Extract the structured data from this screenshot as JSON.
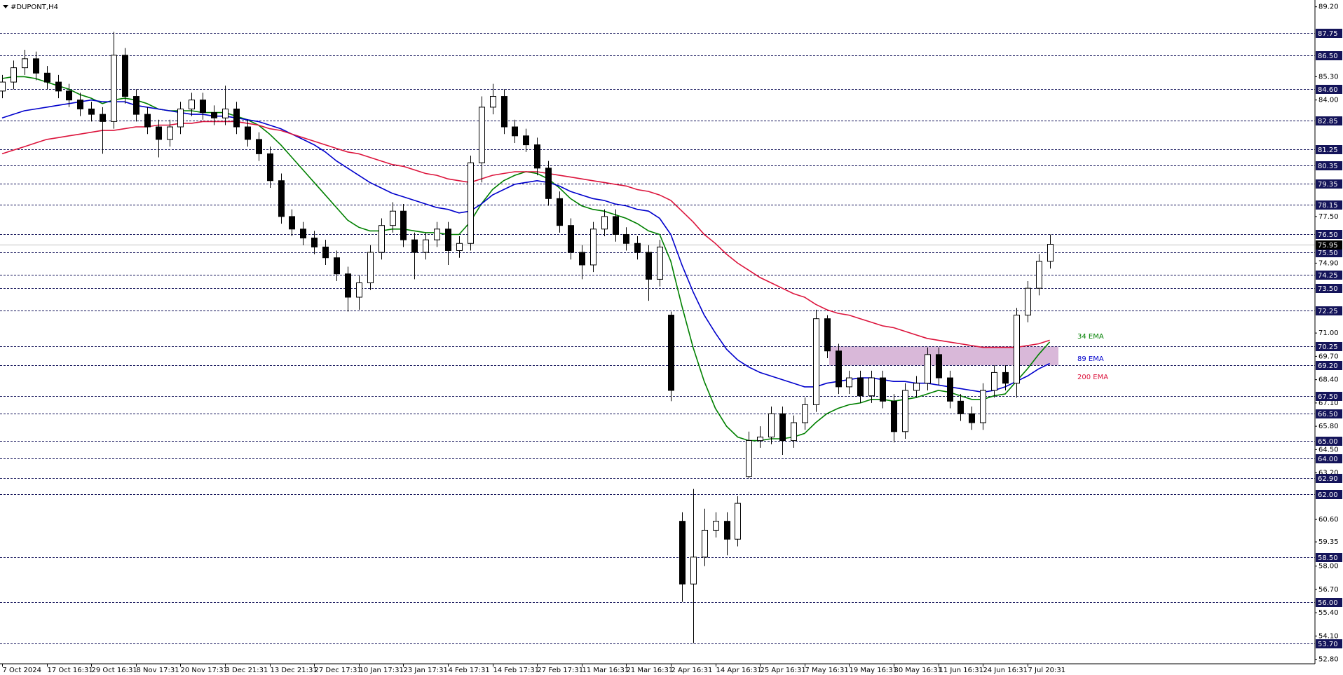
{
  "chart_data": {
    "type": "candlestick",
    "title": "#DUPONT,H4",
    "categories": [
      "7 Oct 2024",
      null,
      null,
      null,
      "17 Oct 16:31",
      null,
      null,
      null,
      "29 Oct 16:31",
      null,
      null,
      null,
      "8 Nov 17:31",
      null,
      null,
      null,
      "20 Nov 17:31",
      null,
      null,
      null,
      "3 Dec 21:31",
      null,
      null,
      null,
      "13 Dec 21:31",
      null,
      null,
      null,
      "27 Dec 17:31",
      null,
      null,
      null,
      "10 Jan 17:31",
      null,
      null,
      null,
      "23 Jan 17:31",
      null,
      null,
      null,
      "4 Feb 17:31",
      null,
      null,
      null,
      "14 Feb 17:31",
      null,
      null,
      null,
      "27 Feb 17:31",
      null,
      null,
      null,
      "11 Mar 16:31",
      null,
      null,
      null,
      "21 Mar 16:31",
      null,
      null,
      null,
      "2 Apr 16:31",
      null,
      null,
      null,
      "14 Apr 16:31",
      null,
      null,
      null,
      "25 Apr 16:31",
      null,
      null,
      null,
      "7 May 16:31",
      null,
      null,
      null,
      "19 May 16:31",
      null,
      null,
      null,
      "30 May 16:31",
      null,
      null,
      null,
      "11 Jun 16:31",
      null,
      null,
      null,
      "24 Jun 16:31",
      null,
      null,
      null,
      "7 Jul 20:31",
      null,
      null
    ],
    "open": [
      84.5,
      85.0,
      85.8,
      86.3,
      85.5,
      85.0,
      84.5,
      84.0,
      83.5,
      83.2,
      82.8,
      86.5,
      84.2,
      83.2,
      82.5,
      81.8,
      82.5,
      83.5,
      84.0,
      83.3,
      83.0,
      83.5,
      82.5,
      81.8,
      81.0,
      79.5,
      77.5,
      76.8,
      76.3,
      75.8,
      75.2,
      74.3,
      73.0,
      73.8,
      75.5,
      77.0,
      77.8,
      76.2,
      75.5,
      76.2,
      76.8,
      75.6,
      76.0,
      80.5,
      83.6,
      84.2,
      82.5,
      82.0,
      81.5,
      80.2,
      78.5,
      77.0,
      75.5,
      74.8,
      76.8,
      77.5,
      76.5,
      76.0,
      75.5,
      74.0,
      72.0,
      60.5,
      57.0,
      58.5,
      60.0,
      60.5,
      59.5,
      63.0,
      65.0,
      65.2,
      66.5,
      65.0,
      66.0,
      67.0,
      71.8,
      70.0,
      68.0,
      68.5,
      67.5,
      68.5,
      67.2,
      65.5,
      67.8,
      68.2,
      69.8,
      68.5,
      67.2,
      66.5,
      66.0,
      67.8,
      68.8,
      68.2,
      72.0,
      73.5,
      75.0
    ],
    "high": [
      85.4,
      86.2,
      86.8,
      86.7,
      85.9,
      85.4,
      84.9,
      84.4,
      83.9,
      83.6,
      87.8,
      86.9,
      84.6,
      83.6,
      82.9,
      82.9,
      83.9,
      84.4,
      84.4,
      83.7,
      84.8,
      83.9,
      82.9,
      82.2,
      81.4,
      79.9,
      77.9,
      77.2,
      76.7,
      76.2,
      75.6,
      74.7,
      74.2,
      75.9,
      77.4,
      78.3,
      78.2,
      76.6,
      76.6,
      77.2,
      77.2,
      76.4,
      80.9,
      84.2,
      84.9,
      84.6,
      82.9,
      82.4,
      81.9,
      80.6,
      78.9,
      77.4,
      75.9,
      77.2,
      77.9,
      77.9,
      76.9,
      76.4,
      75.9,
      76.2,
      72.2,
      61.0,
      62.3,
      61.2,
      61.0,
      61.0,
      61.9,
      65.5,
      65.8,
      66.9,
      66.9,
      66.4,
      67.4,
      72.3,
      72.0,
      70.4,
      68.9,
      68.9,
      68.9,
      68.9,
      67.6,
      68.2,
      68.6,
      70.2,
      70.2,
      68.9,
      67.6,
      66.9,
      68.2,
      69.2,
      69.2,
      72.4,
      73.9,
      75.4,
      76.5
    ],
    "low": [
      84.1,
      84.6,
      85.4,
      85.1,
      84.6,
      84.1,
      83.6,
      83.1,
      82.8,
      81.0,
      82.4,
      83.8,
      82.8,
      82.1,
      80.8,
      81.4,
      82.1,
      83.1,
      82.9,
      82.6,
      82.6,
      82.1,
      81.4,
      80.6,
      79.1,
      77.1,
      76.4,
      75.9,
      75.4,
      74.8,
      73.9,
      72.2,
      72.3,
      73.4,
      75.1,
      76.6,
      75.8,
      74.0,
      75.1,
      75.8,
      74.8,
      75.2,
      75.6,
      79.4,
      83.2,
      82.1,
      81.6,
      81.1,
      79.8,
      78.1,
      76.6,
      75.1,
      74.0,
      74.4,
      76.4,
      76.1,
      75.6,
      75.1,
      72.8,
      73.6,
      67.2,
      56.0,
      53.7,
      58.0,
      59.6,
      58.6,
      59.1,
      62.9,
      64.6,
      64.8,
      64.2,
      64.6,
      65.6,
      66.6,
      69.6,
      67.6,
      67.6,
      67.1,
      67.1,
      66.8,
      64.9,
      65.1,
      67.4,
      67.8,
      68.1,
      66.8,
      66.1,
      65.6,
      65.6,
      67.4,
      67.8,
      67.4,
      71.6,
      73.1,
      74.6
    ],
    "close": [
      85.0,
      85.8,
      86.3,
      85.5,
      85.0,
      84.5,
      84.0,
      83.5,
      83.2,
      82.8,
      86.5,
      84.2,
      83.2,
      82.5,
      81.8,
      82.5,
      83.5,
      84.0,
      83.3,
      83.0,
      83.5,
      82.5,
      81.8,
      81.0,
      79.5,
      77.5,
      76.8,
      76.3,
      75.8,
      75.2,
      74.3,
      73.0,
      73.8,
      75.5,
      77.0,
      77.8,
      76.2,
      75.5,
      76.2,
      76.8,
      75.6,
      76.0,
      80.5,
      83.6,
      84.2,
      82.5,
      82.0,
      81.5,
      80.2,
      78.5,
      77.0,
      75.5,
      74.8,
      76.8,
      77.5,
      76.5,
      76.0,
      75.5,
      74.0,
      75.8,
      67.8,
      57.0,
      58.5,
      60.0,
      60.5,
      59.5,
      61.5,
      65.0,
      65.2,
      66.5,
      65.0,
      66.0,
      67.0,
      71.8,
      70.0,
      68.0,
      68.5,
      67.5,
      68.5,
      67.2,
      65.5,
      67.8,
      68.2,
      69.8,
      68.5,
      67.2,
      66.5,
      66.0,
      67.8,
      68.8,
      68.2,
      72.0,
      73.5,
      75.0,
      75.95
    ],
    "up_color": "#ffffff",
    "down_color": "#000000",
    "series": [
      {
        "name": "34 EMA",
        "color": "#008000",
        "values": [
          85.2,
          85.3,
          85.3,
          85.2,
          85.0,
          84.8,
          84.6,
          84.3,
          84.1,
          83.8,
          84.0,
          84.1,
          84.0,
          83.8,
          83.5,
          83.4,
          83.4,
          83.4,
          83.3,
          83.3,
          83.3,
          83.1,
          82.9,
          82.6,
          82.1,
          81.5,
          80.8,
          80.1,
          79.4,
          78.7,
          78.0,
          77.3,
          76.9,
          76.7,
          76.7,
          76.8,
          76.8,
          76.7,
          76.6,
          76.6,
          76.5,
          76.5,
          77.2,
          78.2,
          79.0,
          79.5,
          79.8,
          80.0,
          79.9,
          79.6,
          79.1,
          78.5,
          78.1,
          77.9,
          77.8,
          77.6,
          77.4,
          77.1,
          76.7,
          76.5,
          75.0,
          72.5,
          70.2,
          68.3,
          66.8,
          65.8,
          65.2,
          65.0,
          65.0,
          65.1,
          65.1,
          65.2,
          65.4,
          66.0,
          66.5,
          66.8,
          67.0,
          67.1,
          67.3,
          67.3,
          67.2,
          67.3,
          67.4,
          67.6,
          67.8,
          67.7,
          67.5,
          67.3,
          67.3,
          67.5,
          67.6,
          68.3,
          69.0,
          69.8,
          70.5
        ]
      },
      {
        "name": "89 EMA",
        "color": "#0000cc",
        "values": [
          83.0,
          83.2,
          83.4,
          83.5,
          83.6,
          83.7,
          83.8,
          83.9,
          84.0,
          83.9,
          83.9,
          83.9,
          83.7,
          83.6,
          83.5,
          83.4,
          83.3,
          83.2,
          83.2,
          83.1,
          83.1,
          83.0,
          82.9,
          82.8,
          82.6,
          82.4,
          82.1,
          81.8,
          81.5,
          81.1,
          80.6,
          80.2,
          79.8,
          79.4,
          79.1,
          78.8,
          78.6,
          78.4,
          78.2,
          78.0,
          77.9,
          77.7,
          77.8,
          78.2,
          78.7,
          79.0,
          79.3,
          79.4,
          79.5,
          79.4,
          79.2,
          78.9,
          78.7,
          78.5,
          78.4,
          78.2,
          78.1,
          77.9,
          77.8,
          77.4,
          76.5,
          74.8,
          73.3,
          72.0,
          71.0,
          70.1,
          69.5,
          69.1,
          68.8,
          68.6,
          68.4,
          68.2,
          68.0,
          68.0,
          68.2,
          68.3,
          68.4,
          68.5,
          68.5,
          68.4,
          68.3,
          68.3,
          68.2,
          68.2,
          68.1,
          68.0,
          67.9,
          67.8,
          67.7,
          67.8,
          68.0,
          68.3,
          68.6,
          69.0,
          69.3
        ]
      },
      {
        "name": "200 EMA",
        "color": "#dc143c",
        "values": [
          81.0,
          81.2,
          81.4,
          81.6,
          81.8,
          81.9,
          82.0,
          82.1,
          82.2,
          82.3,
          82.3,
          82.4,
          82.5,
          82.5,
          82.6,
          82.6,
          82.7,
          82.7,
          82.8,
          82.8,
          82.8,
          82.8,
          82.7,
          82.6,
          82.4,
          82.3,
          82.1,
          81.9,
          81.7,
          81.5,
          81.3,
          81.1,
          81.0,
          80.8,
          80.6,
          80.4,
          80.3,
          80.1,
          79.9,
          79.8,
          79.6,
          79.5,
          79.4,
          79.6,
          79.8,
          79.9,
          80.0,
          80.0,
          80.0,
          79.9,
          79.8,
          79.7,
          79.6,
          79.5,
          79.4,
          79.3,
          79.2,
          79.0,
          78.9,
          78.7,
          78.4,
          77.8,
          77.2,
          76.5,
          76.0,
          75.4,
          74.9,
          74.5,
          74.1,
          73.8,
          73.5,
          73.2,
          73.0,
          72.6,
          72.3,
          72.1,
          72.0,
          71.8,
          71.6,
          71.4,
          71.3,
          71.1,
          70.9,
          70.7,
          70.6,
          70.5,
          70.4,
          70.3,
          70.2,
          70.2,
          70.2,
          70.2,
          70.3,
          70.4,
          70.6
        ]
      }
    ],
    "ylim": [
      52.55,
      89.5
    ],
    "yticks": [
      {
        "value": 89.2,
        "label": "89.20"
      },
      {
        "value": 85.3,
        "label": "85.30"
      },
      {
        "value": 84.0,
        "label": "84.00"
      },
      {
        "value": 77.5,
        "label": "77.50"
      },
      {
        "value": 74.9,
        "label": "74.90"
      },
      {
        "value": 71.0,
        "label": "71.00"
      },
      {
        "value": 69.7,
        "label": "69.70"
      },
      {
        "value": 68.4,
        "label": "68.40"
      },
      {
        "value": 67.1,
        "label": "67.10"
      },
      {
        "value": 65.8,
        "label": "65.80"
      },
      {
        "value": 64.5,
        "label": "64.50"
      },
      {
        "value": 63.2,
        "label": "63.20"
      },
      {
        "value": 60.6,
        "label": "60.60"
      },
      {
        "value": 59.35,
        "label": "59.35"
      },
      {
        "value": 58.0,
        "label": "58.00"
      },
      {
        "value": 56.7,
        "label": "56.70"
      },
      {
        "value": 55.4,
        "label": "55.40"
      },
      {
        "value": 54.1,
        "label": "54.10"
      },
      {
        "value": 52.8,
        "label": "52.80"
      }
    ],
    "levels": [
      {
        "value": 87.75,
        "label": "87.75"
      },
      {
        "value": 86.5,
        "label": "86.50"
      },
      {
        "value": 84.6,
        "label": "84.60"
      },
      {
        "value": 82.85,
        "label": "82.85"
      },
      {
        "value": 81.25,
        "label": "81.25"
      },
      {
        "value": 80.35,
        "label": "80.35"
      },
      {
        "value": 79.35,
        "label": "79.35"
      },
      {
        "value": 78.15,
        "label": "78.15"
      },
      {
        "value": 76.5,
        "label": "76.50"
      },
      {
        "value": 75.5,
        "label": "75.50"
      },
      {
        "value": 74.25,
        "label": "74.25"
      },
      {
        "value": 73.5,
        "label": "73.50"
      },
      {
        "value": 72.25,
        "label": "72.25"
      },
      {
        "value": 70.25,
        "label": "70.25"
      },
      {
        "value": 69.2,
        "label": "69.20"
      },
      {
        "value": 67.5,
        "label": "67.50"
      },
      {
        "value": 66.5,
        "label": "66.50"
      },
      {
        "value": 65.0,
        "label": "65.00"
      },
      {
        "value": 64.0,
        "label": "64.00"
      },
      {
        "value": 62.9,
        "label": "62.90"
      },
      {
        "value": 62.0,
        "label": "62.00"
      },
      {
        "value": 58.5,
        "label": "58.50"
      },
      {
        "value": 56.0,
        "label": "56.00"
      },
      {
        "value": 53.7,
        "label": "53.70"
      }
    ],
    "level_color": "#14145a",
    "last_price": 75.95,
    "zone": {
      "ylim": [
        69.2,
        70.25
      ],
      "color": "#d9b8d9"
    }
  }
}
